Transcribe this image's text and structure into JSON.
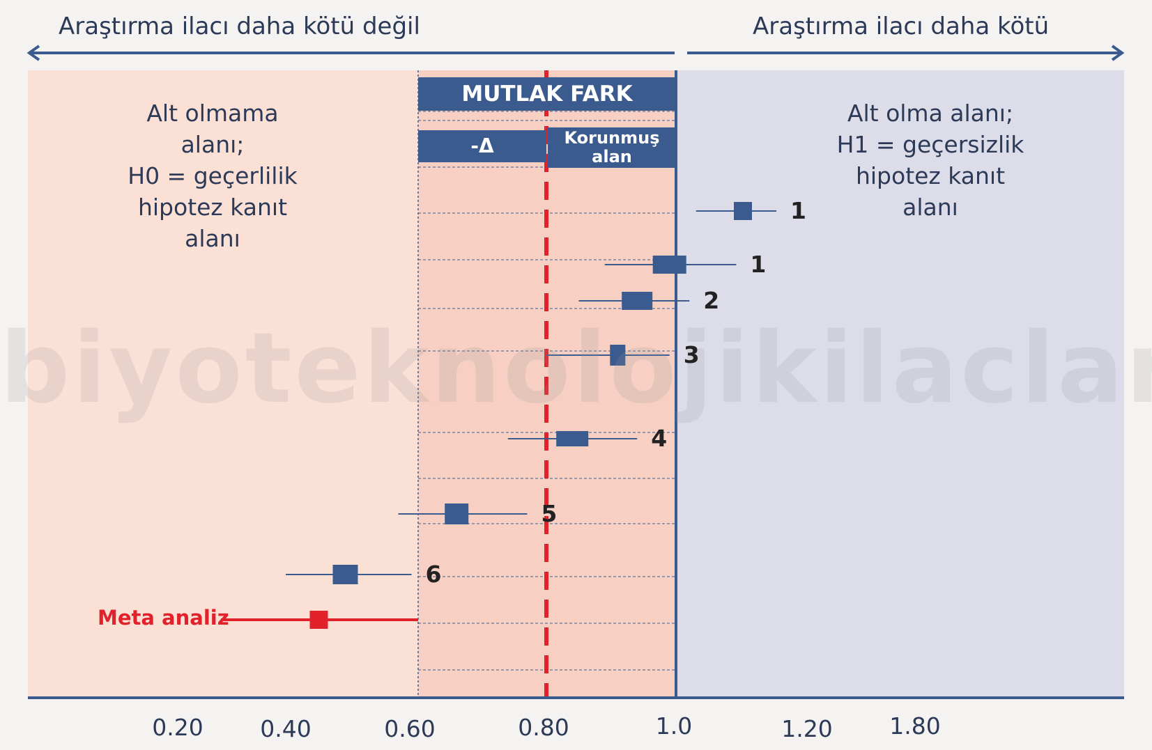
{
  "header": {
    "left_label": "Araştırma ilacı daha kötü değil",
    "right_label": "Araştırma ilacı daha kötü"
  },
  "regions": {
    "left_text": [
      "Alt olmama",
      "alanı;",
      "H0 = geçerlilik",
      "hipotez kanıt",
      "alanı"
    ],
    "right_text": [
      "Alt olma alanı;",
      "H1 = geçersizlik",
      "hipotez kanıt",
      "alanı"
    ]
  },
  "boxes": {
    "mutlak_fark": "MUTLAK FARK",
    "delta": "-Δ",
    "korunmus_line1": "Korunmuş",
    "korunmus_line2": "alan"
  },
  "watermark": "biyoteknolojikilaclar.net",
  "colors": {
    "left_bg": "#fbe0d6",
    "mid_bg": "#f7d0c3",
    "right_bg": "#dcdde9",
    "navy": "#3b5b8e",
    "red": "#e2222b"
  },
  "chart_data": {
    "type": "forest",
    "tick_labels": [
      "0.20",
      "0.40",
      "0.60",
      "0.80",
      "1.0",
      "1.20",
      "1.80"
    ],
    "reference_lines": {
      "margin": 0.6,
      "noninferiority_dashed": 0.8,
      "null": 1.0
    },
    "studies": [
      {
        "label": "1",
        "point": 1.1,
        "ci": [
          1.03,
          1.15
        ]
      },
      {
        "label": "1",
        "point": 0.99,
        "ci": [
          0.89,
          1.09
        ]
      },
      {
        "label": "2",
        "point": 0.94,
        "ci": [
          0.85,
          1.02
        ]
      },
      {
        "label": "3",
        "point": 0.91,
        "ci": [
          0.8,
          0.99
        ]
      },
      {
        "label": "4",
        "point": 0.84,
        "ci": [
          0.74,
          0.94
        ]
      },
      {
        "label": "5",
        "point": 0.66,
        "ci": [
          0.57,
          0.77
        ]
      },
      {
        "label": "6",
        "point": 0.49,
        "ci": [
          0.4,
          0.59
        ]
      },
      {
        "label": "Meta analiz",
        "point": 0.45,
        "ci": [
          0.28,
          0.6
        ],
        "highlight": true
      }
    ]
  }
}
